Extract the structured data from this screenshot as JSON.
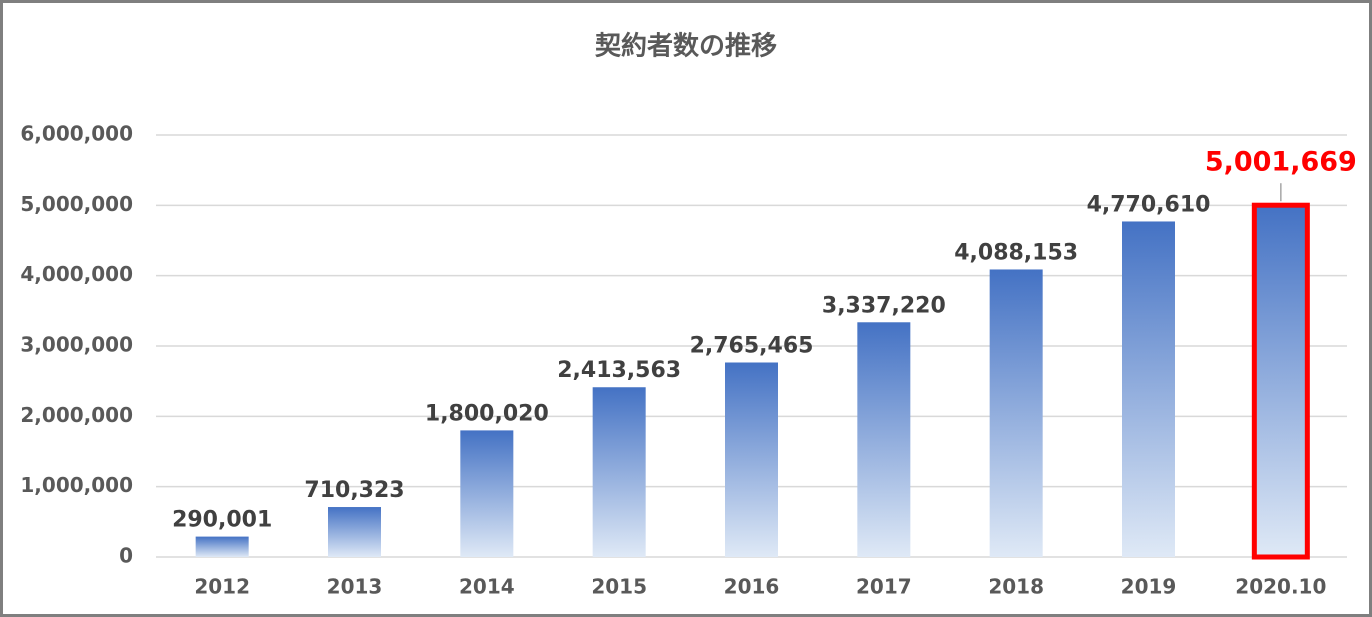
{
  "chart_data": {
    "type": "bar",
    "title": "契約者数の推移",
    "categories": [
      "2012",
      "2013",
      "2014",
      "2015",
      "2016",
      "2017",
      "2018",
      "2019",
      "2020.10"
    ],
    "values": [
      290001,
      710323,
      1800020,
      2413563,
      2765465,
      3337220,
      4088153,
      4770610,
      5001669
    ],
    "value_labels": [
      "290,001",
      "710,323",
      "1,800,020",
      "2,413,563",
      "2,765,465",
      "3,337,220",
      "4,088,153",
      "4,770,610",
      "5,001,669"
    ],
    "color": "#4472c4",
    "ylim": [
      0,
      6000000
    ],
    "yticks": [
      0,
      {
        "value": 1000000,
        "label": "1,000,000"
      },
      {
        "value": 2000000,
        "label": "2,000,000"
      },
      {
        "value": 3000000,
        "label": "3,000,000"
      },
      {
        "value": 4000000,
        "label": "4,000,000"
      },
      {
        "value": 5000000,
        "label": "5,000,000"
      },
      {
        "value": 6000000,
        "label": "6,000,000"
      }
    ],
    "grid": true,
    "highlight": {
      "index": 8,
      "color": "#ff0000"
    }
  }
}
